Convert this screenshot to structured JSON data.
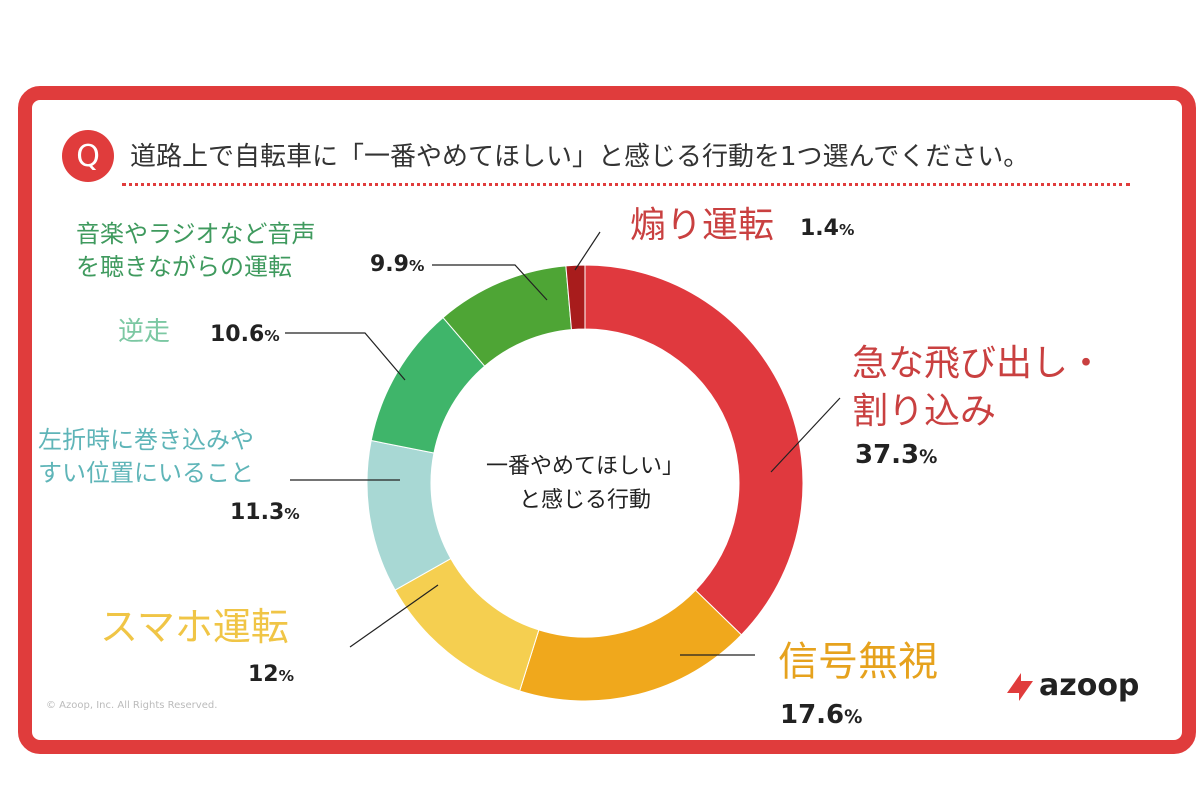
{
  "question": {
    "badge": "Q",
    "text": "道路上で自転車に「一番やめてほしい」と感じる行動を1つ選んでください。"
  },
  "center": {
    "line1": "一番やめてほしい」",
    "line2": "と感じる行動"
  },
  "copyright": "© Azoop, Inc. All Rights Reserved.",
  "logo": {
    "text": "azoop"
  },
  "chart_data": {
    "type": "pie",
    "style": "donut",
    "start_angle_deg": 0,
    "direction": "clockwise",
    "slices": [
      {
        "label": "急な飛び出し・割り込み",
        "label_lines": [
          "急な飛び出し・",
          "割り込み"
        ],
        "value": 37.3,
        "pct_text": "37.3",
        "color": "#e0393e"
      },
      {
        "label": "信号無視",
        "label_lines": [
          "信号無視"
        ],
        "value": 17.6,
        "pct_text": "17.6",
        "color": "#f0a81c"
      },
      {
        "label": "スマホ運転",
        "label_lines": [
          "スマホ運転"
        ],
        "value": 12,
        "pct_text": "12",
        "color": "#f5cf50"
      },
      {
        "label": "左折時に巻き込みやすい位置にいること",
        "label_lines": [
          "左折時に巻き込みや",
          "すい位置にいること"
        ],
        "value": 11.3,
        "pct_text": "11.3",
        "color": "#a8d8d4"
      },
      {
        "label": "逆走",
        "label_lines": [
          "逆走"
        ],
        "value": 10.6,
        "pct_text": "10.6",
        "color": "#3fb56a"
      },
      {
        "label": "音楽やラジオなど音声を聴きながらの運転",
        "label_lines": [
          "音楽やラジオなど音声",
          "を聴きながらの運転"
        ],
        "value": 9.9,
        "pct_text": "9.9",
        "color": "#4ea535"
      },
      {
        "label": "煽り運転",
        "label_lines": [
          "煽り運転"
        ],
        "value": 1.4,
        "pct_text": "1.4",
        "color": "#a81c1c"
      }
    ],
    "percent_unit": "%"
  }
}
